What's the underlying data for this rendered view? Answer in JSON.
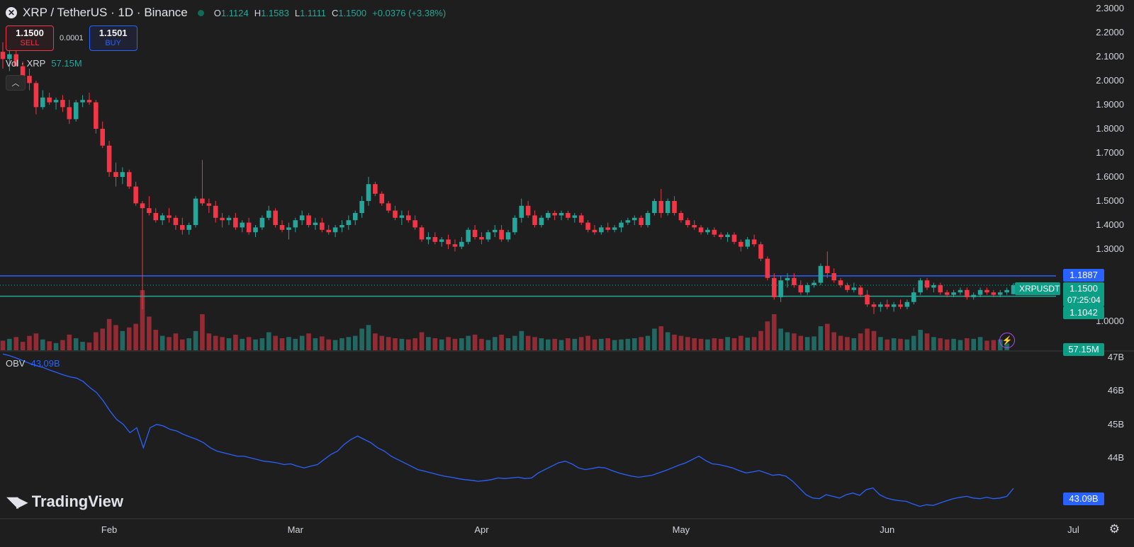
{
  "header": {
    "symbol": "XRP / TetherUS · 1D · Binance",
    "open_label": "O",
    "open": "1.1124",
    "high_label": "H",
    "high": "1.1583",
    "low_label": "L",
    "low": "1.1111",
    "close_label": "C",
    "close": "1.1500",
    "change": "+0.0376 (+3.38%)"
  },
  "trade": {
    "sell_price": "1.1500",
    "sell_label": "SELL",
    "spread": "0.0001",
    "buy_price": "1.1501",
    "buy_label": "BUY"
  },
  "volume": {
    "label": "Vol · XRP",
    "value": "57.15M",
    "tag": "57.15M"
  },
  "obv": {
    "label": "OBV",
    "value": "43.09B",
    "tag": "43.09B"
  },
  "tags": {
    "line_level": "1.1887",
    "symbol": "XRPUSDT",
    "price": "1.1500",
    "countdown": "07:25:04",
    "support_level": "1.1042"
  },
  "price_axis": [
    "2.3000",
    "2.2000",
    "2.1000",
    "2.0000",
    "1.9000",
    "1.8000",
    "1.7000",
    "1.6000",
    "1.5000",
    "1.4000",
    "1.3000",
    "1.0000"
  ],
  "obv_axis": [
    "47B",
    "46B",
    "45B",
    "44B"
  ],
  "time_axis": [
    "Feb",
    "Mar",
    "Apr",
    "May",
    "Jun",
    "Jul"
  ],
  "watermark": "TradingView",
  "colors": {
    "up": "#26a69a",
    "down": "#f23645",
    "obv": "#2962ff",
    "resistance": "#2962ff",
    "support": "#26a69a"
  },
  "chart_data": {
    "type": "candlestick",
    "x_axis": "date (daily, roughly mid-January to mid-July)",
    "ylim": [
      0.95,
      2.32
    ],
    "horizontal_lines": [
      1.1887,
      1.1042
    ],
    "candles_ohlc": [
      [
        2.12,
        2.16,
        2.05,
        2.09
      ],
      [
        2.09,
        2.14,
        2.04,
        2.11
      ],
      [
        2.11,
        2.13,
        2.06,
        2.06
      ],
      [
        2.06,
        2.08,
        2.0,
        2.02
      ],
      [
        2.02,
        2.05,
        1.96,
        1.99
      ],
      [
        1.99,
        2.0,
        1.86,
        1.89
      ],
      [
        1.89,
        1.96,
        1.88,
        1.93
      ],
      [
        1.93,
        1.95,
        1.9,
        1.91
      ],
      [
        1.91,
        1.93,
        1.88,
        1.92
      ],
      [
        1.92,
        1.94,
        1.87,
        1.89
      ],
      [
        1.89,
        1.92,
        1.82,
        1.84
      ],
      [
        1.84,
        1.92,
        1.83,
        1.91
      ],
      [
        1.91,
        1.94,
        1.89,
        1.92
      ],
      [
        1.92,
        1.95,
        1.9,
        1.91
      ],
      [
        1.91,
        1.92,
        1.78,
        1.8
      ],
      [
        1.8,
        1.83,
        1.72,
        1.73
      ],
      [
        1.73,
        1.75,
        1.6,
        1.62
      ],
      [
        1.62,
        1.66,
        1.56,
        1.6
      ],
      [
        1.6,
        1.64,
        1.57,
        1.62
      ],
      [
        1.62,
        1.63,
        1.55,
        1.56
      ],
      [
        1.56,
        1.58,
        1.48,
        1.49
      ],
      [
        1.49,
        1.5,
        1.05,
        1.47
      ],
      [
        1.47,
        1.52,
        1.44,
        1.45
      ],
      [
        1.45,
        1.47,
        1.41,
        1.42
      ],
      [
        1.42,
        1.45,
        1.4,
        1.44
      ],
      [
        1.44,
        1.47,
        1.41,
        1.43
      ],
      [
        1.43,
        1.44,
        1.38,
        1.4
      ],
      [
        1.4,
        1.43,
        1.36,
        1.38
      ],
      [
        1.38,
        1.41,
        1.36,
        1.4
      ],
      [
        1.4,
        1.52,
        1.39,
        1.51
      ],
      [
        1.51,
        1.67,
        1.48,
        1.49
      ],
      [
        1.49,
        1.51,
        1.45,
        1.48
      ],
      [
        1.48,
        1.5,
        1.41,
        1.43
      ],
      [
        1.43,
        1.45,
        1.39,
        1.42
      ],
      [
        1.42,
        1.44,
        1.4,
        1.43
      ],
      [
        1.43,
        1.45,
        1.38,
        1.39
      ],
      [
        1.39,
        1.42,
        1.37,
        1.41
      ],
      [
        1.41,
        1.43,
        1.36,
        1.37
      ],
      [
        1.37,
        1.4,
        1.35,
        1.39
      ],
      [
        1.39,
        1.44,
        1.38,
        1.43
      ],
      [
        1.43,
        1.48,
        1.42,
        1.46
      ],
      [
        1.46,
        1.47,
        1.39,
        1.4
      ],
      [
        1.4,
        1.42,
        1.37,
        1.38
      ],
      [
        1.38,
        1.41,
        1.34,
        1.39
      ],
      [
        1.39,
        1.43,
        1.37,
        1.42
      ],
      [
        1.42,
        1.46,
        1.4,
        1.44
      ],
      [
        1.44,
        1.45,
        1.39,
        1.4
      ],
      [
        1.4,
        1.43,
        1.38,
        1.41
      ],
      [
        1.41,
        1.43,
        1.37,
        1.38
      ],
      [
        1.38,
        1.4,
        1.36,
        1.37
      ],
      [
        1.37,
        1.4,
        1.35,
        1.39
      ],
      [
        1.39,
        1.42,
        1.37,
        1.4
      ],
      [
        1.4,
        1.44,
        1.38,
        1.42
      ],
      [
        1.42,
        1.46,
        1.4,
        1.45
      ],
      [
        1.45,
        1.52,
        1.43,
        1.5
      ],
      [
        1.5,
        1.6,
        1.48,
        1.57
      ],
      [
        1.57,
        1.58,
        1.52,
        1.53
      ],
      [
        1.53,
        1.54,
        1.48,
        1.49
      ],
      [
        1.49,
        1.5,
        1.45,
        1.46
      ],
      [
        1.46,
        1.48,
        1.42,
        1.43
      ],
      [
        1.43,
        1.46,
        1.4,
        1.44
      ],
      [
        1.44,
        1.46,
        1.41,
        1.42
      ],
      [
        1.42,
        1.44,
        1.38,
        1.39
      ],
      [
        1.39,
        1.4,
        1.33,
        1.34
      ],
      [
        1.34,
        1.37,
        1.32,
        1.35
      ],
      [
        1.35,
        1.37,
        1.32,
        1.33
      ],
      [
        1.33,
        1.35,
        1.31,
        1.34
      ],
      [
        1.34,
        1.36,
        1.3,
        1.32
      ],
      [
        1.32,
        1.34,
        1.29,
        1.31
      ],
      [
        1.31,
        1.35,
        1.3,
        1.33
      ],
      [
        1.33,
        1.39,
        1.32,
        1.38
      ],
      [
        1.38,
        1.4,
        1.34,
        1.35
      ],
      [
        1.35,
        1.37,
        1.32,
        1.34
      ],
      [
        1.34,
        1.38,
        1.33,
        1.37
      ],
      [
        1.37,
        1.4,
        1.35,
        1.38
      ],
      [
        1.38,
        1.4,
        1.33,
        1.34
      ],
      [
        1.34,
        1.38,
        1.33,
        1.37
      ],
      [
        1.37,
        1.44,
        1.36,
        1.43
      ],
      [
        1.43,
        1.51,
        1.41,
        1.48
      ],
      [
        1.48,
        1.5,
        1.43,
        1.44
      ],
      [
        1.44,
        1.46,
        1.39,
        1.4
      ],
      [
        1.4,
        1.44,
        1.39,
        1.43
      ],
      [
        1.43,
        1.46,
        1.42,
        1.45
      ],
      [
        1.45,
        1.46,
        1.42,
        1.44
      ],
      [
        1.44,
        1.46,
        1.42,
        1.45
      ],
      [
        1.45,
        1.46,
        1.42,
        1.43
      ],
      [
        1.43,
        1.45,
        1.41,
        1.44
      ],
      [
        1.44,
        1.45,
        1.4,
        1.41
      ],
      [
        1.41,
        1.42,
        1.37,
        1.38
      ],
      [
        1.38,
        1.4,
        1.36,
        1.37
      ],
      [
        1.37,
        1.4,
        1.36,
        1.39
      ],
      [
        1.39,
        1.41,
        1.37,
        1.38
      ],
      [
        1.38,
        1.4,
        1.37,
        1.39
      ],
      [
        1.39,
        1.42,
        1.37,
        1.41
      ],
      [
        1.41,
        1.43,
        1.4,
        1.42
      ],
      [
        1.42,
        1.44,
        1.4,
        1.43
      ],
      [
        1.43,
        1.44,
        1.39,
        1.4
      ],
      [
        1.4,
        1.46,
        1.39,
        1.45
      ],
      [
        1.45,
        1.51,
        1.44,
        1.5
      ],
      [
        1.5,
        1.55,
        1.43,
        1.45
      ],
      [
        1.45,
        1.51,
        1.44,
        1.5
      ],
      [
        1.5,
        1.52,
        1.44,
        1.45
      ],
      [
        1.45,
        1.46,
        1.41,
        1.42
      ],
      [
        1.42,
        1.43,
        1.39,
        1.4
      ],
      [
        1.4,
        1.42,
        1.38,
        1.39
      ],
      [
        1.39,
        1.4,
        1.36,
        1.37
      ],
      [
        1.37,
        1.39,
        1.36,
        1.38
      ],
      [
        1.38,
        1.39,
        1.35,
        1.36
      ],
      [
        1.36,
        1.37,
        1.34,
        1.35
      ],
      [
        1.35,
        1.37,
        1.33,
        1.36
      ],
      [
        1.36,
        1.37,
        1.32,
        1.33
      ],
      [
        1.33,
        1.34,
        1.29,
        1.31
      ],
      [
        1.31,
        1.35,
        1.3,
        1.34
      ],
      [
        1.34,
        1.36,
        1.31,
        1.32
      ],
      [
        1.32,
        1.33,
        1.25,
        1.26
      ],
      [
        1.26,
        1.27,
        1.17,
        1.18
      ],
      [
        1.18,
        1.2,
        1.09,
        1.1
      ],
      [
        1.1,
        1.19,
        1.08,
        1.17
      ],
      [
        1.17,
        1.2,
        1.14,
        1.18
      ],
      [
        1.18,
        1.2,
        1.14,
        1.15
      ],
      [
        1.15,
        1.17,
        1.11,
        1.12
      ],
      [
        1.12,
        1.16,
        1.11,
        1.15
      ],
      [
        1.15,
        1.17,
        1.14,
        1.16
      ],
      [
        1.16,
        1.24,
        1.15,
        1.23
      ],
      [
        1.23,
        1.29,
        1.18,
        1.2
      ],
      [
        1.2,
        1.22,
        1.16,
        1.17
      ],
      [
        1.17,
        1.18,
        1.14,
        1.15
      ],
      [
        1.15,
        1.16,
        1.12,
        1.13
      ],
      [
        1.13,
        1.16,
        1.12,
        1.14
      ],
      [
        1.14,
        1.15,
        1.1,
        1.11
      ],
      [
        1.11,
        1.13,
        1.06,
        1.07
      ],
      [
        1.07,
        1.08,
        1.03,
        1.06
      ],
      [
        1.06,
        1.08,
        1.04,
        1.07
      ],
      [
        1.07,
        1.09,
        1.05,
        1.06
      ],
      [
        1.06,
        1.08,
        1.04,
        1.07
      ],
      [
        1.07,
        1.09,
        1.05,
        1.06
      ],
      [
        1.06,
        1.09,
        1.05,
        1.08
      ],
      [
        1.08,
        1.14,
        1.07,
        1.12
      ],
      [
        1.12,
        1.18,
        1.11,
        1.17
      ],
      [
        1.17,
        1.18,
        1.13,
        1.14
      ],
      [
        1.14,
        1.16,
        1.12,
        1.15
      ],
      [
        1.15,
        1.16,
        1.11,
        1.12
      ],
      [
        1.12,
        1.13,
        1.1,
        1.11
      ],
      [
        1.11,
        1.13,
        1.1,
        1.12
      ],
      [
        1.12,
        1.14,
        1.11,
        1.13
      ],
      [
        1.13,
        1.14,
        1.09,
        1.1
      ],
      [
        1.1,
        1.12,
        1.09,
        1.11
      ],
      [
        1.11,
        1.14,
        1.1,
        1.13
      ],
      [
        1.13,
        1.14,
        1.11,
        1.12
      ],
      [
        1.12,
        1.13,
        1.1,
        1.11
      ],
      [
        1.11,
        1.13,
        1.1,
        1.12
      ],
      [
        1.12,
        1.14,
        1.11,
        1.13
      ],
      [
        1.1124,
        1.1583,
        1.1111,
        1.15
      ]
    ],
    "volume_millions": [
      80,
      95,
      110,
      70,
      120,
      140,
      90,
      75,
      60,
      85,
      130,
      100,
      70,
      65,
      150,
      180,
      260,
      210,
      160,
      190,
      220,
      500,
      280,
      170,
      120,
      110,
      140,
      90,
      100,
      160,
      300,
      140,
      120,
      110,
      100,
      130,
      95,
      110,
      90,
      100,
      150,
      120,
      100,
      110,
      95,
      120,
      140,
      100,
      115,
      90,
      85,
      100,
      110,
      120,
      180,
      210,
      140,
      120,
      110,
      100,
      95,
      90,
      100,
      150,
      110,
      100,
      90,
      110,
      95,
      100,
      120,
      130,
      95,
      85,
      110,
      130,
      100,
      120,
      160,
      120,
      110,
      100,
      90,
      95,
      85,
      100,
      95,
      110,
      120,
      90,
      95,
      100,
      85,
      90,
      95,
      100,
      110,
      120,
      180,
      200,
      150,
      130,
      120,
      110,
      100,
      95,
      90,
      100,
      95,
      110,
      100,
      120,
      105,
      110,
      160,
      240,
      300,
      180,
      150,
      140,
      120,
      110,
      115,
      200,
      220,
      150,
      120,
      110,
      100,
      140,
      180,
      160,
      110,
      90,
      100,
      95,
      90,
      120,
      170,
      140,
      110,
      100,
      90,
      95,
      85,
      100,
      95,
      110,
      80,
      85,
      90,
      57
    ],
    "obv_billions": [
      47.1,
      47.05,
      46.98,
      46.9,
      46.82,
      46.75,
      46.7,
      46.62,
      46.55,
      46.48,
      46.42,
      46.38,
      46.28,
      46.1,
      45.95,
      45.7,
      45.4,
      45.15,
      45.0,
      44.75,
      44.9,
      44.3,
      44.9,
      45.0,
      44.95,
      44.85,
      44.8,
      44.7,
      44.62,
      44.55,
      44.45,
      44.3,
      44.2,
      44.15,
      44.1,
      44.05,
      44.05,
      44.0,
      43.95,
      43.9,
      43.88,
      43.85,
      43.8,
      43.82,
      43.75,
      43.7,
      43.75,
      43.8,
      43.95,
      44.1,
      44.2,
      44.4,
      44.55,
      44.65,
      44.55,
      44.45,
      44.3,
      44.2,
      44.05,
      43.95,
      43.85,
      43.75,
      43.65,
      43.6,
      43.55,
      43.5,
      43.45,
      43.42,
      43.38,
      43.35,
      43.33,
      43.3,
      43.32,
      43.35,
      43.4,
      43.38,
      43.4,
      43.42,
      43.38,
      43.4,
      43.55,
      43.65,
      43.75,
      43.85,
      43.9,
      43.82,
      43.7,
      43.65,
      43.68,
      43.72,
      43.7,
      43.62,
      43.55,
      43.5,
      43.45,
      43.42,
      43.45,
      43.48,
      43.55,
      43.62,
      43.7,
      43.78,
      43.85,
      43.95,
      44.05,
      43.92,
      43.82,
      43.8,
      43.75,
      43.7,
      43.62,
      43.55,
      43.58,
      43.62,
      43.55,
      43.48,
      43.5,
      43.45,
      43.3,
      43.1,
      42.9,
      42.8,
      42.78,
      42.9,
      42.85,
      42.8,
      42.9,
      42.95,
      42.88,
      43.05,
      43.1,
      42.9,
      42.8,
      42.75,
      42.72,
      42.7,
      42.62,
      42.55,
      42.6,
      42.58,
      42.65,
      42.72,
      42.78,
      42.82,
      42.85,
      42.8,
      42.78,
      42.82,
      42.78,
      42.8,
      42.85,
      43.09
    ]
  }
}
